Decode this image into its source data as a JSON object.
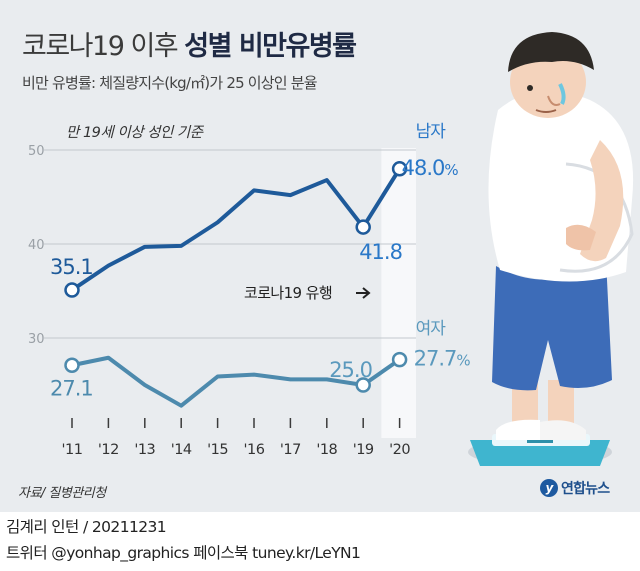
{
  "header": {
    "title_prefix": "코로나19 이후",
    "title_bold": "성별 비만유병률",
    "subtitle": "비만 유병률: 체질량지수(kg/㎡)가 25 이상인 분율"
  },
  "chart_data": {
    "type": "line",
    "note": "만 19세 이상 성인 기준",
    "categories": [
      "'11",
      "'12",
      "'13",
      "'14",
      "'15",
      "'16",
      "'17",
      "'18",
      "'19",
      "'20"
    ],
    "ylim": [
      25,
      52
    ],
    "yticks": [
      30,
      40,
      50
    ],
    "grid": true,
    "series": [
      {
        "name": "남자",
        "color": "#1e5a9a",
        "text_color": "#2a78c8",
        "values": [
          35.1,
          37.7,
          39.7,
          39.8,
          42.3,
          45.7,
          45.2,
          46.8,
          41.8,
          48.0
        ]
      },
      {
        "name": "여자",
        "color": "#4d8aad",
        "text_color": "#5a99bd",
        "values": [
          27.1,
          27.9,
          25.0,
          22.8,
          25.9,
          26.1,
          25.6,
          25.6,
          25.0,
          27.7
        ]
      }
    ],
    "data_labels": [
      {
        "series": 0,
        "index": 0,
        "text": "35.1"
      },
      {
        "series": 0,
        "index": 8,
        "text": "41.8"
      },
      {
        "series": 0,
        "index": 9,
        "text": "48.0",
        "unit": "%"
      },
      {
        "series": 1,
        "index": 0,
        "text": "27.1"
      },
      {
        "series": 1,
        "index": 8,
        "text": "25.0"
      },
      {
        "series": 1,
        "index": 9,
        "text": "27.7",
        "unit": "%"
      }
    ],
    "annotation": "코로나19 유행",
    "highlight_from_index": 8.5
  },
  "footer": {
    "source": "자료/ 질병관리청",
    "logo_text": "연합뉴스",
    "credit_author": "김계리 인턴 / 20211231",
    "credit_social": "트위터 @yonhap_graphics  페이스북 tuney.kr/LeYN1"
  },
  "colors": {
    "background": "#e9ecef",
    "highlight": "#f7f8fa",
    "male_line": "#1e5a9a",
    "female_line": "#4d8aad"
  }
}
